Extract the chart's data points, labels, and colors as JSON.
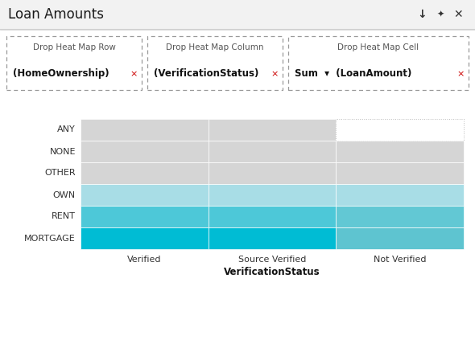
{
  "title": "Loan Amounts",
  "rows": [
    "ANY",
    "NONE",
    "OTHER",
    "OWN",
    "RENT",
    "MORTGAGE"
  ],
  "cols": [
    "Verified",
    "Source Verified",
    "Not Verified"
  ],
  "xlabel": "VerificationStatus",
  "colors": [
    [
      "#d5d5d5",
      "#d5d5d5",
      null
    ],
    [
      "#d5d5d5",
      "#d5d5d5",
      "#d5d5d5"
    ],
    [
      "#d5d5d5",
      "#d5d5d5",
      "#d5d5d5"
    ],
    [
      "#a8dde6",
      "#a8dde6",
      "#a8dde6"
    ],
    [
      "#4dc8d8",
      "#4dc8d8",
      "#62c8d4"
    ],
    [
      "#00bcd4",
      "#00bcd4",
      "#5ec4d0"
    ]
  ],
  "bg_color": "#ffffff",
  "title_bar_color": "#f2f2f2",
  "title_sep_color": "#d0d0d0",
  "title_fontsize": 12,
  "header_label_fontsize": 7.5,
  "header_bold_fontsize": 8.5,
  "row_label_fontsize": 8,
  "col_label_fontsize": 8,
  "xlabel_fontsize": 8.5,
  "box_edge_color": "#999999",
  "box_label_color": "#555555",
  "box_bold_color": "#111111",
  "red_x_color": "#cc0000",
  "row_label_color": "#333333",
  "col_label_color": "#333333",
  "xlabel_color": "#111111",
  "cell_border_color": "#ffffff",
  "missing_cell_edge_color": "#bbbbbb",
  "icon_color": "#333333"
}
